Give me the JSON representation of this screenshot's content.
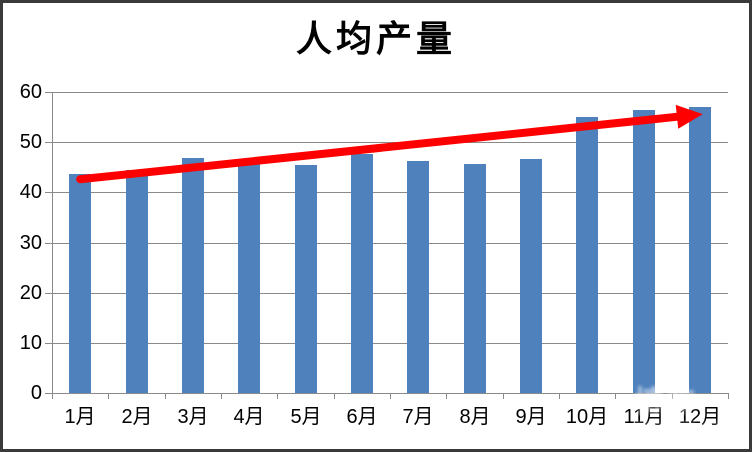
{
  "chart_data": {
    "type": "bar",
    "title": "人均产量",
    "categories": [
      "1月",
      "2月",
      "3月",
      "4月",
      "5月",
      "6月",
      "7月",
      "8月",
      "9月",
      "10月",
      "11月",
      "12月"
    ],
    "values": [
      43.7,
      44.4,
      46.9,
      46.0,
      45.4,
      47.6,
      46.3,
      45.7,
      46.7,
      55.1,
      56.5,
      57.1
    ],
    "xlabel": "",
    "ylabel": "",
    "y_ticks": [
      0,
      10,
      20,
      30,
      40,
      50,
      60
    ],
    "ylim": [
      0,
      60
    ],
    "grid": true,
    "legend_position": "none",
    "bar_color": "#4f81bd",
    "gridline_color": "#8a8a8a",
    "trend_arrow": {
      "type": "annotation-arrow",
      "color": "#ff0000",
      "start_month": "1月",
      "start_value": 42.6,
      "end_month": "12月",
      "end_value": 55.6
    }
  },
  "watermark": {
    "main": "博车",
    "sub": "www.bigao.com"
  }
}
